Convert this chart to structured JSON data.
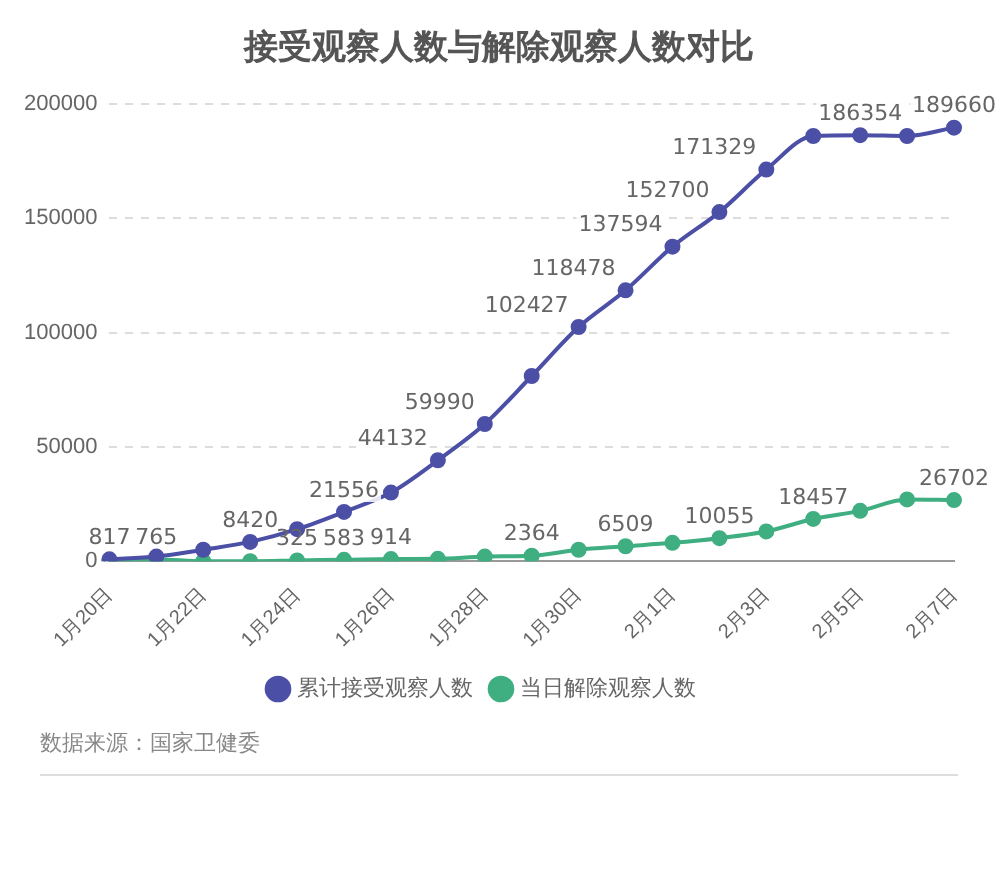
{
  "chart_data": {
    "type": "line",
    "title": "接受观察人数与解除观察人数对比",
    "categories": [
      "1月20日",
      null,
      "1月22日",
      null,
      "1月24日",
      null,
      "1月26日",
      null,
      "1月28日",
      null,
      "1月30日",
      null,
      "2月1日",
      null,
      "2月3日",
      null,
      "2月5日",
      null,
      "2月7日"
    ],
    "series": [
      {
        "name": "累计接受观察人数",
        "color": "#4b4fa6",
        "values": [
          817,
          2000,
          5000,
          8420,
          14000,
          21556,
          30000,
          44132,
          59990,
          81000,
          102427,
          118478,
          137594,
          152700,
          171329,
          186000,
          186354,
          186000,
          189660
        ],
        "value_labels": [
          "817",
          null,
          null,
          "8420",
          null,
          "21556",
          null,
          "44132",
          "59990",
          null,
          "102427",
          "118478",
          "137594",
          "152700",
          "171329",
          null,
          "186354",
          null,
          "189660"
        ]
      },
      {
        "name": "当日解除观察人数",
        "color": "#3fae80",
        "values": [
          0,
          765,
          0,
          0,
          325,
          583,
          914,
          1000,
          2000,
          2364,
          5000,
          6509,
          8000,
          10055,
          13000,
          18457,
          22000,
          27000,
          26702
        ],
        "value_labels": [
          null,
          "765",
          null,
          null,
          "325",
          "583",
          "914",
          null,
          null,
          "2364",
          null,
          "6509",
          null,
          "10055",
          null,
          "18457",
          null,
          null,
          "26702"
        ]
      }
    ],
    "ylim": [
      0,
      200000
    ],
    "yticks": [
      0,
      50000,
      100000,
      150000,
      200000
    ],
    "grid": "y",
    "legend": "bottom",
    "marker": "circle",
    "line_style": "solid",
    "annotations": [
      "数据来源：国家卫健委"
    ]
  }
}
